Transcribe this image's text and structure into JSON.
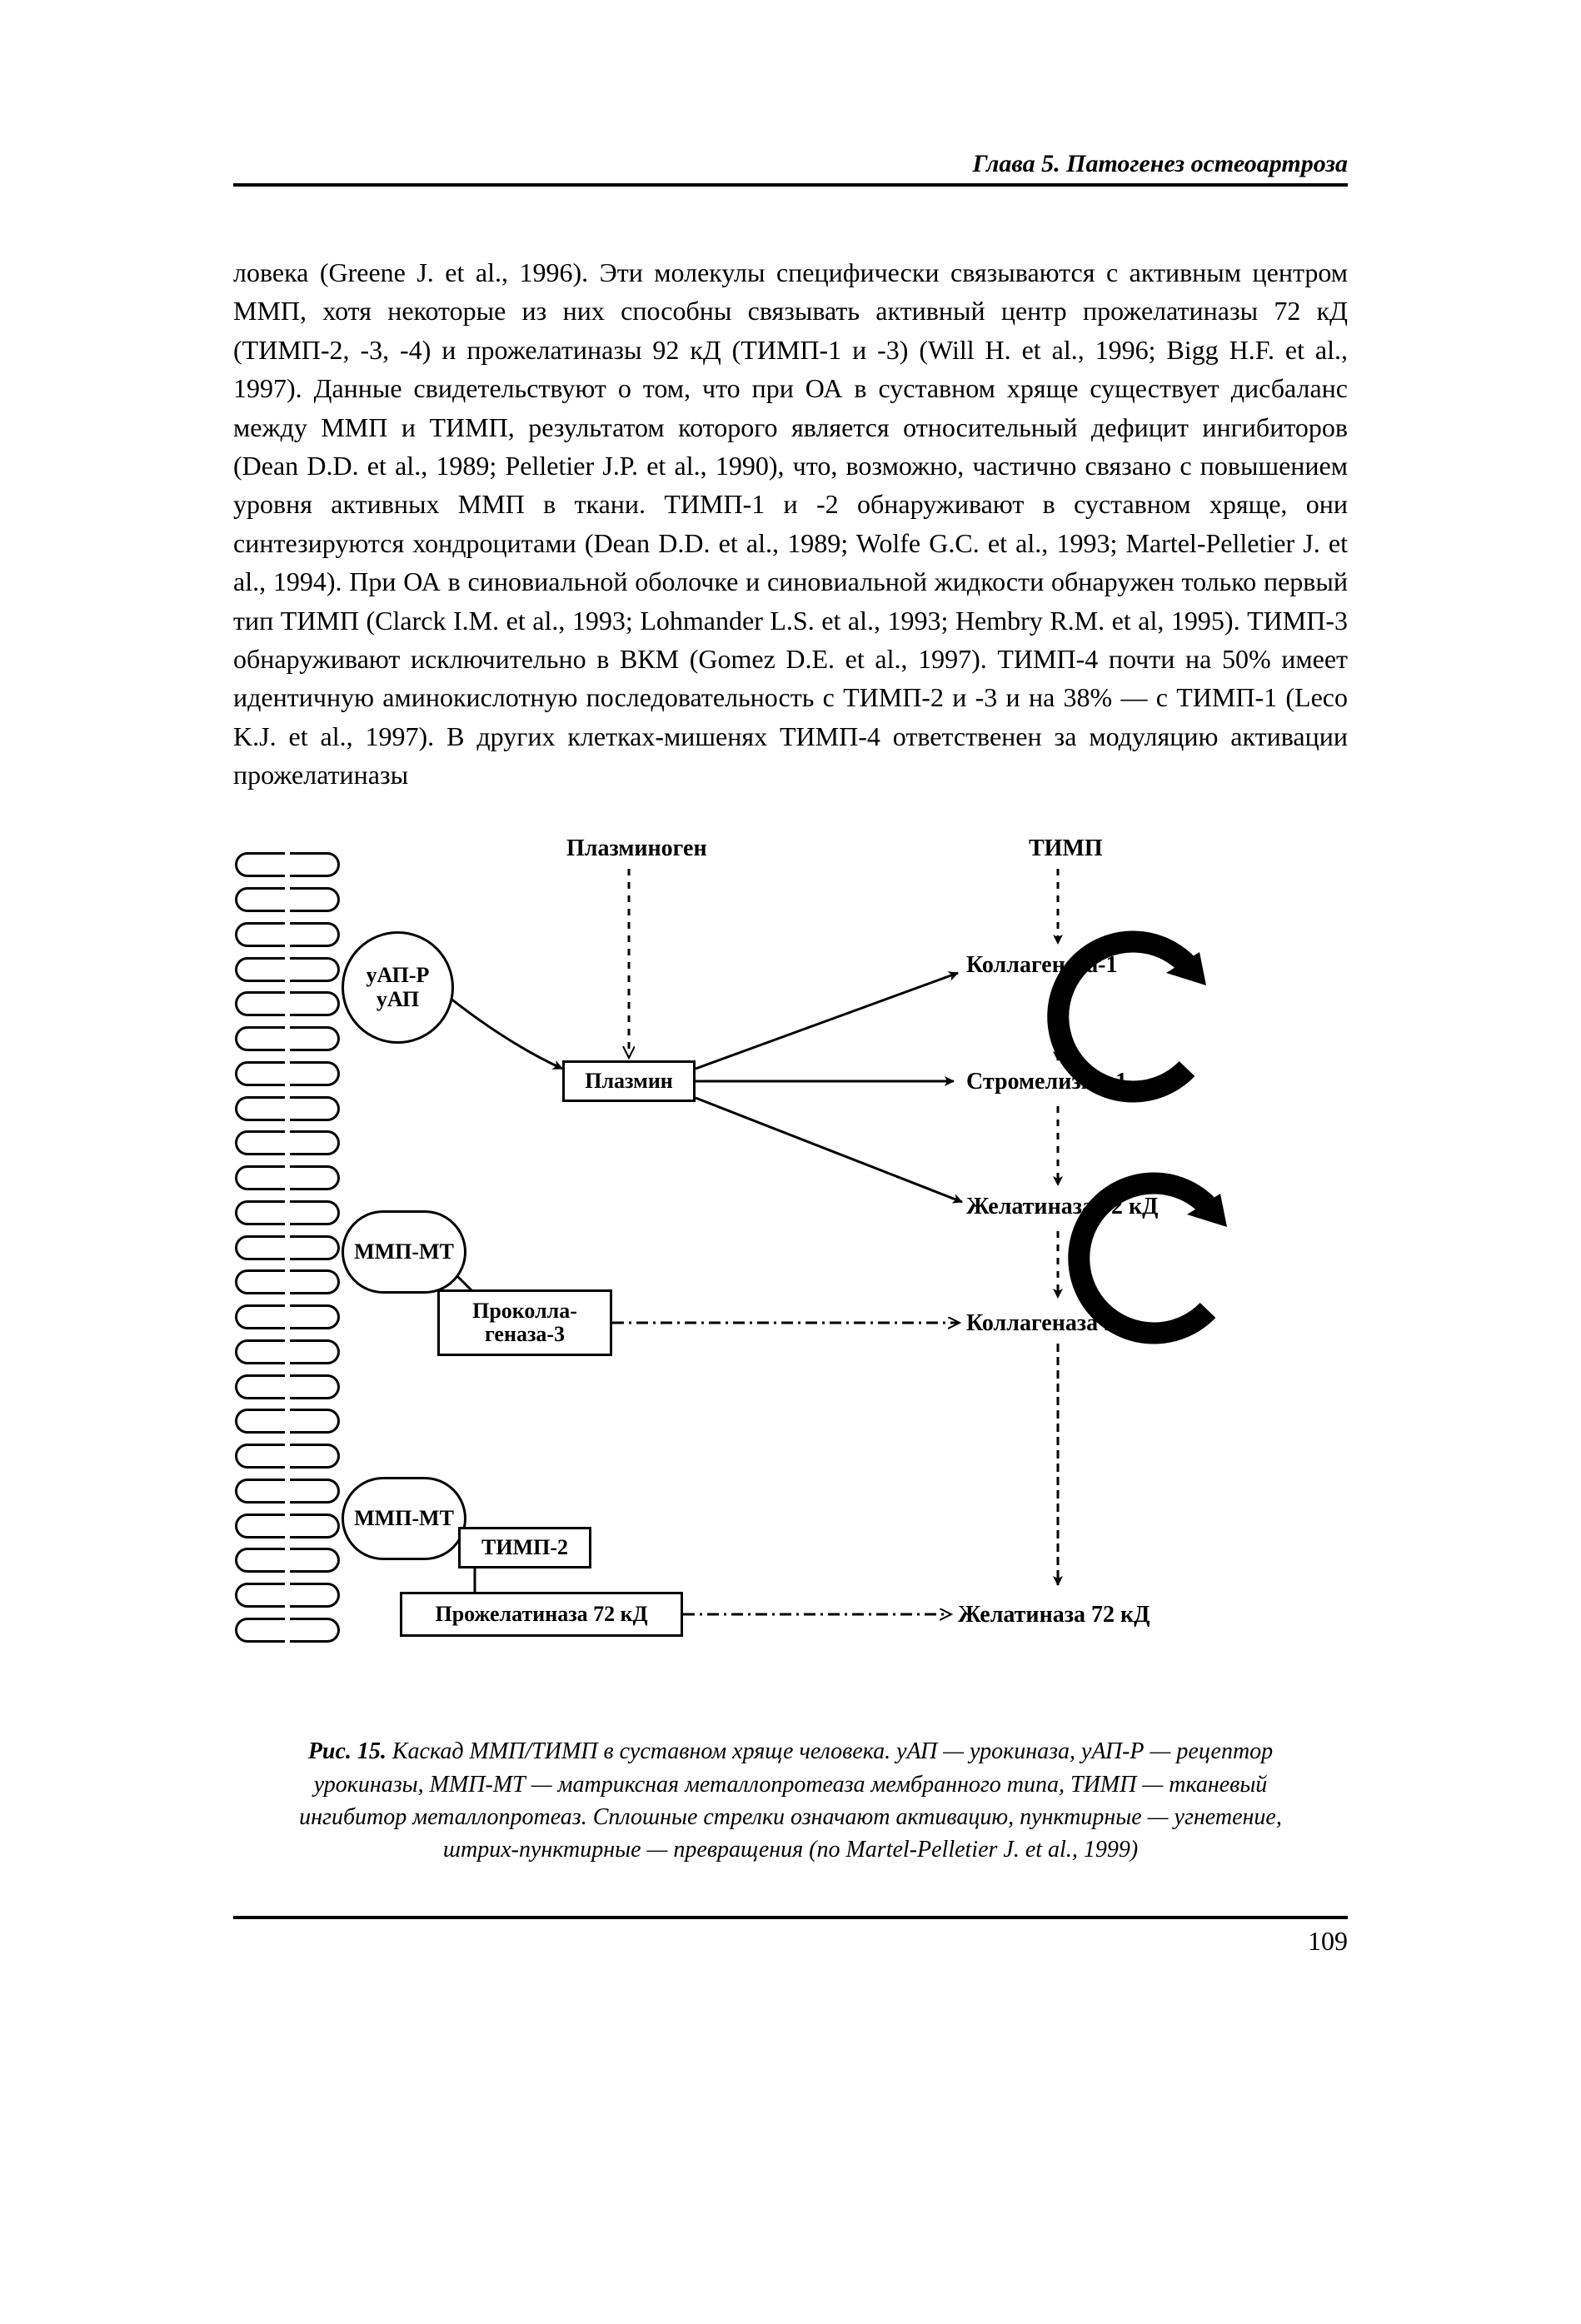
{
  "header": "Глава 5. Патогенез остеоартроза",
  "body_paragraph": "ловека (Greene J. et al., 1996). Эти молекулы специфически связываются с активным центром ММП, хотя некоторые из них способны связывать активный центр прожелатиназы 72 кД (ТИМП-2, -3, -4) и прожелатиназы 92 кД (ТИМП-1 и -3) (Will H. et al., 1996; Bigg H.F. et al., 1997). Данные свидетельствуют о том, что при ОА в суставном хряще существует дисбаланс между ММП и ТИМП, результатом которого является относительный дефицит ингибиторов (Dean D.D. et al., 1989; Pelletier J.P. et al., 1990), что, возможно, частично связано с повышением уровня активных ММП в ткани. ТИМП-1 и -2 обнаруживают в суставном хряще, они синтезируются хондроцитами (Dean D.D. et al., 1989; Wolfe G.C. et al., 1993; Martel-Pelletier J. et al., 1994). При ОА в синовиальной оболочке и синовиальной жидкости обнаружен только первый тип ТИМП (Clarck I.M. et al., 1993; Lohmander L.S. et al., 1993; Hembry R.M. et al, 1995). ТИМП-3 обнаруживают исключительно в ВКМ (Gomez D.E. et al., 1997). ТИМП-4 почти на 50% имеет идентичную аминокислотную последовательность с ТИМП-2 и -3 и на 38% — с ТИМП-1 (Leco K.J. et al., 1997). В других клетках-мишенях ТИМП-4 ответственен за модуляцию активации прожелатиназы",
  "diagram": {
    "labels": {
      "plasminogen": "Плазминоген",
      "timp": "ТИМП",
      "uap_r": "уАП-Р",
      "uap": "уАП",
      "plasmin": "Плазмин",
      "collagenase1": "Коллагеназа-1",
      "stromelysin1": "Стромелизин-1",
      "gelatinase92": "Желатиназа 92 кД",
      "mmp_mt1": "ММП-МТ",
      "procollagenase3": "Проколла-\nгеназа-3",
      "collagenase3": "Коллагеназа 3",
      "mmp_mt2": "ММП-МТ",
      "timp2": "ТИМП-2",
      "progelatinase72": "Прожелатиназа 72 кД",
      "gelatinase72": "Желатиназа 72 кД"
    },
    "receptor_count": 23,
    "colors": {
      "stroke": "#000000",
      "fill": "#ffffff",
      "arrow_fill": "#000000"
    }
  },
  "caption_bold": "Рис. 15.",
  "caption_text": " Каскад ММП/ТИМП в суставном хряще человека. уАП — урокиназа, уАП-Р — рецептор урокиназы, ММП-МТ — матриксная металлопротеаза мембранного типа, ТИМП — тканевый ингибитор металлопротеаз. Сплошные стрелки означают активацию, пунктирные — угнетение, штрих-пунктирные — превращения (по Martel-Pelletier J. et al., 1999)",
  "page_number": "109"
}
